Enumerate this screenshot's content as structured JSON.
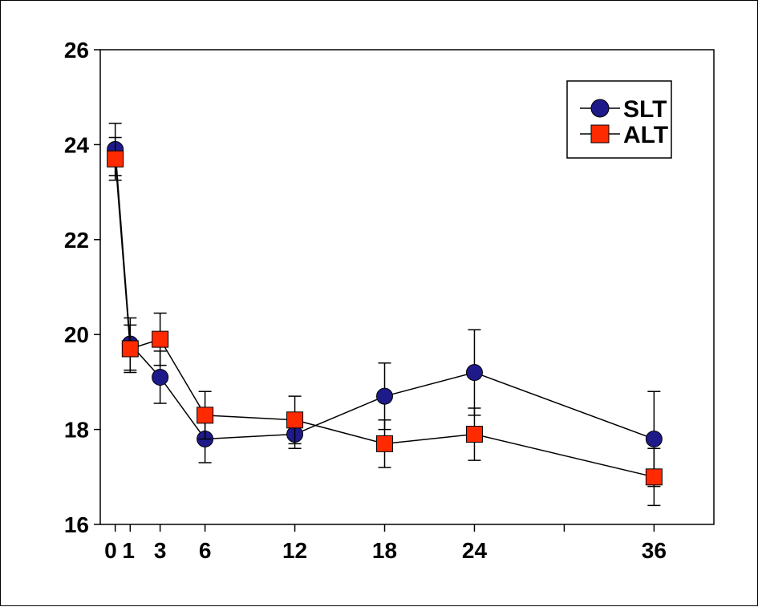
{
  "chart_data": {
    "type": "line",
    "title": "",
    "xlabel": "",
    "ylabel": "",
    "xlim": [
      -1,
      40
    ],
    "ylim": [
      16,
      26
    ],
    "x_ticks": [
      0,
      1,
      3,
      6,
      12,
      18,
      24,
      30,
      36
    ],
    "x_tick_labels": [
      "0",
      "1",
      "3",
      "6",
      "12",
      "18",
      "24",
      "",
      "36"
    ],
    "y_ticks": [
      16,
      18,
      20,
      22,
      24,
      26
    ],
    "y_tick_labels": [
      "16",
      "18",
      "20",
      "22",
      "24",
      "26"
    ],
    "grid": false,
    "legend_position": "top-right",
    "series": [
      {
        "name": "SLT",
        "marker": "circle",
        "color": "#1f1a8a",
        "x": [
          0,
          1,
          3,
          6,
          12,
          18,
          24,
          36
        ],
        "values": [
          23.9,
          19.8,
          19.1,
          17.8,
          17.9,
          18.7,
          19.2,
          17.8
        ],
        "error": [
          0.55,
          0.55,
          0.55,
          0.5,
          0.3,
          0.7,
          0.9,
          1.0
        ]
      },
      {
        "name": "ALT",
        "marker": "square",
        "color": "#ff2a00",
        "x": [
          0,
          1,
          3,
          6,
          12,
          18,
          24,
          36
        ],
        "values": [
          23.7,
          19.7,
          19.9,
          18.3,
          18.2,
          17.7,
          17.9,
          17.0
        ],
        "error": [
          0.45,
          0.5,
          0.55,
          0.5,
          0.5,
          0.5,
          0.55,
          0.6
        ]
      }
    ]
  }
}
